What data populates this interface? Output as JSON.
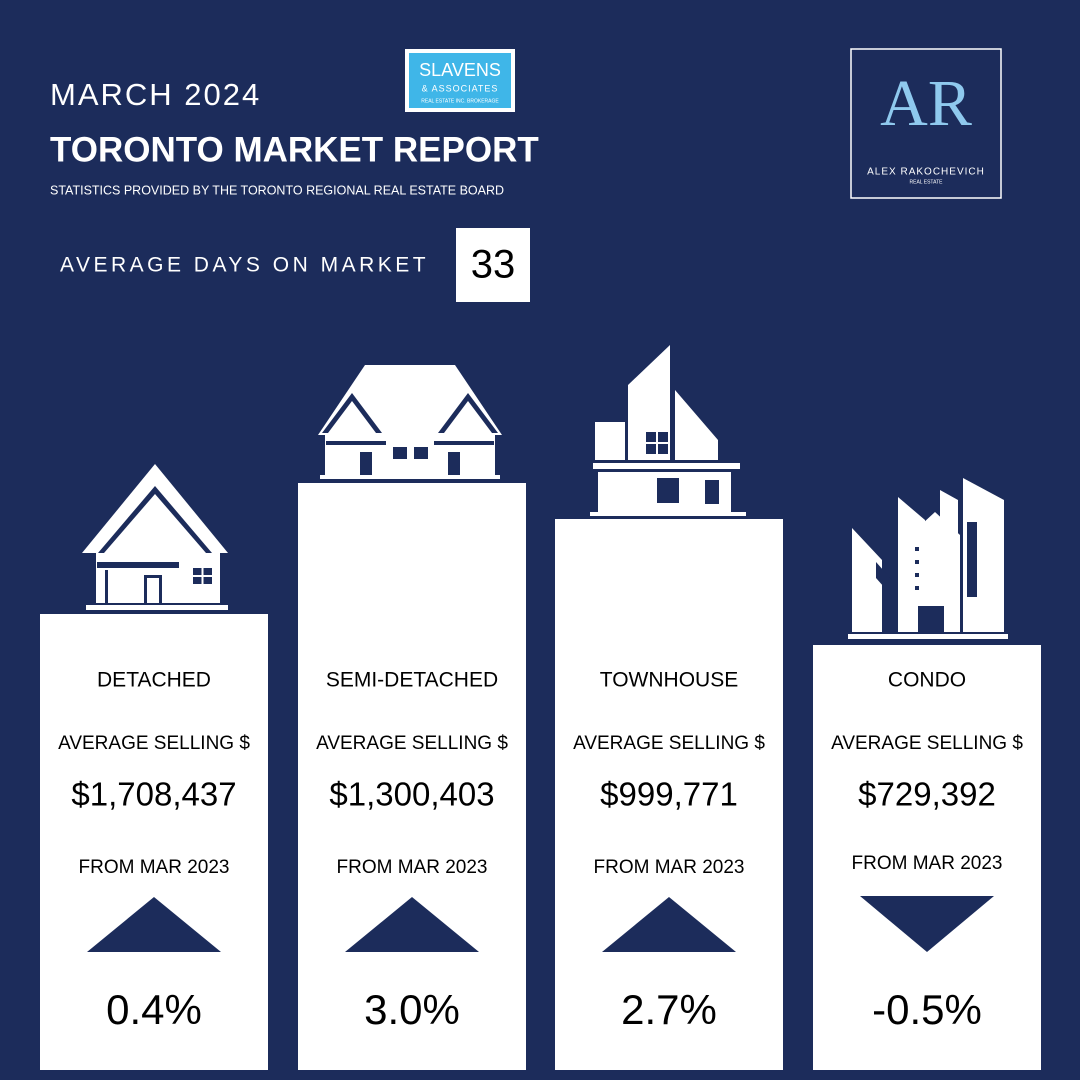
{
  "header": {
    "month": "MARCH 2024",
    "title": "TORONTO MARKET REPORT",
    "source": "STATISTICS PROVIDED BY THE TORONTO REGIONAL REAL ESTATE BOARD"
  },
  "brokerage_logo": {
    "name": "SLAVENS",
    "sub": "& ASSOCIATES",
    "tagline": "REAL ESTATE INC. BROKERAGE"
  },
  "agent_logo": {
    "monogram": "AR",
    "name": "ALEX RAKOCHEVICH",
    "tagline": "REAL ESTATE"
  },
  "days_on_market": {
    "label": "AVERAGE DAYS ON MARKET",
    "value": "33"
  },
  "cards": [
    {
      "type": "DETACHED",
      "price_label": "AVERAGE SELLING $",
      "price": "$1,708,437",
      "change_label": "FROM MAR 2023",
      "direction": "up",
      "change": "0.4%"
    },
    {
      "type": "SEMI-DETACHED",
      "price_label": "AVERAGE SELLING $",
      "price": "$1,300,403",
      "change_label": "FROM MAR 2023",
      "direction": "up",
      "change": "3.0%"
    },
    {
      "type": "TOWNHOUSE",
      "price_label": "AVERAGE SELLING $",
      "price": "$999,771",
      "change_label": "FROM MAR 2023",
      "direction": "up",
      "change": "2.7%"
    },
    {
      "type": "CONDO",
      "price_label": "AVERAGE SELLING $",
      "price": "$729,392",
      "change_label": "FROM MAR 2023",
      "direction": "down",
      "change": "-0.5%"
    }
  ]
}
